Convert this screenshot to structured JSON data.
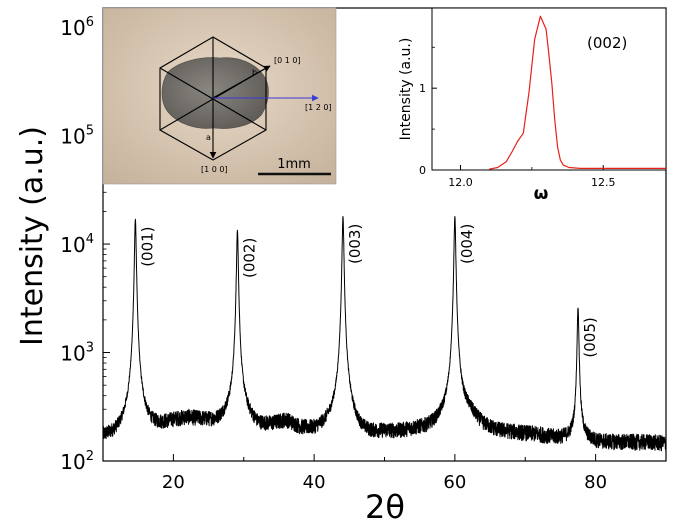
{
  "chart_data": [
    {
      "type": "line",
      "name": "main-xrd-pattern",
      "xlabel": "2θ",
      "ylabel": "Intensity (a.u.)",
      "xlim": [
        10,
        90
      ],
      "ylim": [
        100,
        1500000
      ],
      "yscale": "log",
      "xticks": [
        20,
        40,
        60,
        80
      ],
      "xtick_labels": [
        "20",
        "40",
        "60",
        "80"
      ],
      "yticks": [
        100,
        1000,
        10000,
        100000,
        1000000
      ],
      "ytick_labels": [
        {
          "base": "10",
          "exp": "2"
        },
        {
          "base": "10",
          "exp": "3"
        },
        {
          "base": "10",
          "exp": "4"
        },
        {
          "base": "10",
          "exp": "5"
        },
        {
          "base": "10",
          "exp": "6"
        }
      ],
      "grid": false,
      "line_color": "#000000",
      "baseline": [
        [
          10,
          165
        ],
        [
          13,
          170
        ],
        [
          15,
          170
        ],
        [
          17,
          195
        ],
        [
          20,
          235
        ],
        [
          22,
          250
        ],
        [
          24,
          240
        ],
        [
          26,
          225
        ],
        [
          28,
          230
        ],
        [
          30,
          230
        ],
        [
          32,
          205
        ],
        [
          34,
          215
        ],
        [
          36,
          235
        ],
        [
          38,
          200
        ],
        [
          40,
          190
        ],
        [
          42,
          200
        ],
        [
          44,
          200
        ],
        [
          46,
          175
        ],
        [
          48,
          175
        ],
        [
          50,
          185
        ],
        [
          52,
          185
        ],
        [
          54,
          195
        ],
        [
          56,
          200
        ],
        [
          58,
          215
        ],
        [
          60,
          220
        ],
        [
          62,
          260
        ],
        [
          64,
          210
        ],
        [
          66,
          190
        ],
        [
          68,
          185
        ],
        [
          70,
          180
        ],
        [
          72,
          175
        ],
        [
          74,
          165
        ],
        [
          76,
          160
        ],
        [
          78,
          155
        ],
        [
          80,
          150
        ],
        [
          82,
          150
        ],
        [
          84,
          150
        ],
        [
          86,
          150
        ],
        [
          88,
          150
        ],
        [
          90,
          145
        ]
      ],
      "peaks": [
        {
          "x": 14.6,
          "y": 16500,
          "label": "(001)"
        },
        {
          "x": 29.1,
          "y": 13000,
          "label": "(002)"
        },
        {
          "x": 44.1,
          "y": 17500,
          "label": "(003)"
        },
        {
          "x": 60.0,
          "y": 17500,
          "label": "(004)"
        },
        {
          "x": 77.5,
          "y": 2400,
          "label": "(005)"
        }
      ]
    },
    {
      "type": "line",
      "name": "rocking-curve-inset",
      "xlabel": "ω",
      "ylabel": "Intensity (a.u.)",
      "annotation": "(002)",
      "xlim": [
        11.9,
        12.72
      ],
      "ylim": [
        0,
        1.98
      ],
      "xticks": [
        12.0,
        12.5
      ],
      "xtick_labels": [
        "12.0",
        "12.5"
      ],
      "yticks": [
        0,
        1
      ],
      "ytick_labels": [
        "0",
        "1"
      ],
      "line_color": "#e8201a",
      "x": [
        12.1,
        12.13,
        12.16,
        12.18,
        12.2,
        12.22,
        12.24,
        12.26,
        12.28,
        12.3,
        12.31,
        12.32,
        12.33,
        12.34,
        12.35,
        12.36,
        12.38,
        12.42,
        12.5,
        12.6,
        12.72
      ],
      "y": [
        0.01,
        0.03,
        0.1,
        0.22,
        0.35,
        0.45,
        0.95,
        1.6,
        1.88,
        1.72,
        1.4,
        1.05,
        0.62,
        0.28,
        0.12,
        0.06,
        0.03,
        0.02,
        0.02,
        0.02,
        0.02
      ]
    }
  ],
  "photo_inset": {
    "scale_label": "1mm",
    "axis_labels": {
      "b_dir": "[0 1 0]",
      "b": "b",
      "diag": "[1 2 0]",
      "a_dir": "[1 0 0]",
      "a": "a"
    },
    "colors": {
      "background": "#dbc9b6",
      "crystal": "#7c7873",
      "arrow": "#3a3ad8"
    }
  }
}
